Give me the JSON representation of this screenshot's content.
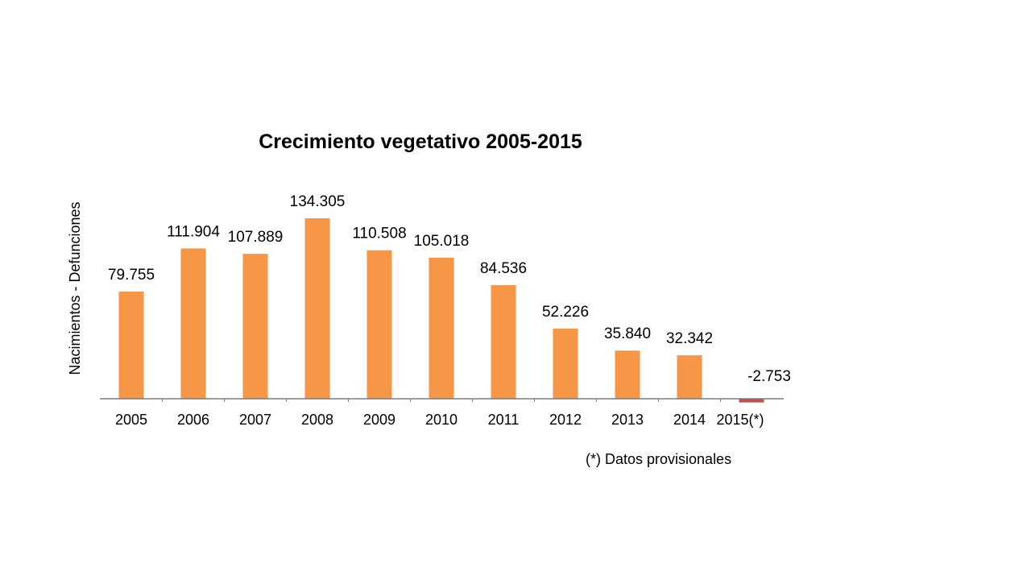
{
  "chart_data": {
    "type": "bar",
    "title": "Crecimiento vegetativo 2005-2015",
    "xlabel": "",
    "ylabel": "Nacimientos - Defunciones",
    "categories": [
      "2005",
      "2006",
      "2007",
      "2008",
      "2009",
      "2010",
      "2011",
      "2012",
      "2013",
      "2014",
      "2015(*)"
    ],
    "values": [
      79755,
      111904,
      107889,
      134305,
      110508,
      105018,
      84536,
      52226,
      35840,
      32342,
      -2753
    ],
    "value_labels": [
      "79.755",
      "111.904",
      "107.889",
      "134.305",
      "110.508",
      "105.018",
      "84.536",
      "52.226",
      "35.840",
      "32.342",
      "-2.753"
    ],
    "ylim": [
      0,
      134305
    ],
    "grid": false,
    "legend": "none",
    "colors": {
      "positive": "#F79646",
      "negative": "#C0504D",
      "axis": "#7F7F7F"
    },
    "footnote": "(*)  Datos provisionales"
  }
}
